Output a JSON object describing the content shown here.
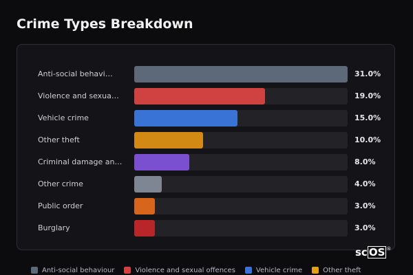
{
  "page": {
    "title": "Crime Types Breakdown"
  },
  "chart_data": {
    "type": "bar",
    "orientation": "horizontal",
    "title": "Crime Types Breakdown",
    "xlim": [
      0,
      31
    ],
    "categories": [
      "Anti-social behavi…",
      "Violence and sexua…",
      "Vehicle crime",
      "Other theft",
      "Criminal damage an…",
      "Other crime",
      "Public order",
      "Burglary"
    ],
    "values": [
      31.0,
      19.0,
      15.0,
      10.0,
      8.0,
      4.0,
      3.0,
      3.0
    ],
    "value_labels": [
      "31.0%",
      "19.0%",
      "15.0%",
      "10.0%",
      "8.0%",
      "4.0%",
      "3.0%",
      "3.0%"
    ],
    "colors": [
      "#5d6878",
      "#d04141",
      "#3a73d6",
      "#d28a14",
      "#7a4fd0",
      "#7e8694",
      "#d7651b",
      "#b8262a"
    ],
    "track_color": "#222227",
    "legend": {
      "position": "bottom",
      "entries": [
        {
          "label": "Anti-social behaviour",
          "color": "#5d6878"
        },
        {
          "label": "Violence and sexual offences",
          "color": "#d04141"
        },
        {
          "label": "Vehicle crime",
          "color": "#3a73d6"
        },
        {
          "label": "Other theft",
          "color": "#e3a019"
        }
      ]
    },
    "grid": false
  },
  "watermark": {
    "prefix": "sc",
    "boxed": "OS",
    "mark": "®"
  }
}
